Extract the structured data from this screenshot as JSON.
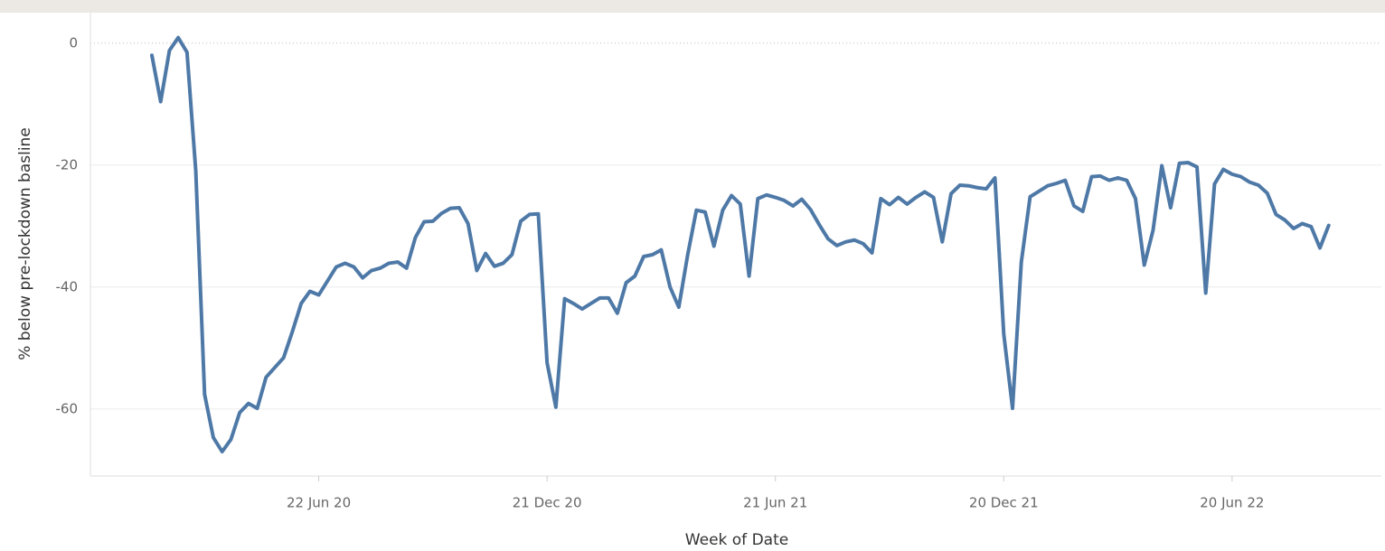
{
  "chart_data": {
    "type": "line",
    "y_label": "% below pre-lockdown basline",
    "x_label": "Week of Date",
    "x": [
      "2020-02-10",
      "2020-02-17",
      "2020-02-24",
      "2020-03-02",
      "2020-03-09",
      "2020-03-16",
      "2020-03-23",
      "2020-03-30",
      "2020-04-06",
      "2020-04-13",
      "2020-04-20",
      "2020-04-27",
      "2020-05-04",
      "2020-05-11",
      "2020-05-18",
      "2020-05-25",
      "2020-06-01",
      "2020-06-08",
      "2020-06-15",
      "2020-06-22",
      "2020-06-29",
      "2020-07-06",
      "2020-07-13",
      "2020-07-20",
      "2020-07-27",
      "2020-08-03",
      "2020-08-10",
      "2020-08-17",
      "2020-08-24",
      "2020-08-31",
      "2020-09-07",
      "2020-09-14",
      "2020-09-21",
      "2020-09-28",
      "2020-10-05",
      "2020-10-12",
      "2020-10-19",
      "2020-10-26",
      "2020-11-02",
      "2020-11-09",
      "2020-11-16",
      "2020-11-23",
      "2020-11-30",
      "2020-12-07",
      "2020-12-14",
      "2020-12-21",
      "2020-12-28",
      "2021-01-04",
      "2021-01-11",
      "2021-01-18",
      "2021-01-25",
      "2021-02-01",
      "2021-02-08",
      "2021-02-15",
      "2021-02-22",
      "2021-03-01",
      "2021-03-08",
      "2021-03-15",
      "2021-03-22",
      "2021-03-29",
      "2021-04-05",
      "2021-04-12",
      "2021-04-19",
      "2021-04-26",
      "2021-05-03",
      "2021-05-10",
      "2021-05-17",
      "2021-05-24",
      "2021-05-31",
      "2021-06-07",
      "2021-06-14",
      "2021-06-21",
      "2021-06-28",
      "2021-07-05",
      "2021-07-12",
      "2021-07-19",
      "2021-07-26",
      "2021-08-02",
      "2021-08-09",
      "2021-08-16",
      "2021-08-23",
      "2021-08-30",
      "2021-09-06",
      "2021-09-13",
      "2021-09-20",
      "2021-09-27",
      "2021-10-04",
      "2021-10-11",
      "2021-10-18",
      "2021-10-25",
      "2021-11-01",
      "2021-11-08",
      "2021-11-15",
      "2021-11-22",
      "2021-11-29",
      "2021-12-06",
      "2021-12-13",
      "2021-12-20",
      "2021-12-27",
      "2022-01-03",
      "2022-01-10",
      "2022-01-17",
      "2022-01-24",
      "2022-01-31",
      "2022-02-07",
      "2022-02-14",
      "2022-02-21",
      "2022-02-28",
      "2022-03-07",
      "2022-03-14",
      "2022-03-21",
      "2022-03-28",
      "2022-04-04",
      "2022-04-11",
      "2022-04-18",
      "2022-04-25",
      "2022-05-02",
      "2022-05-09",
      "2022-05-16",
      "2022-05-23",
      "2022-05-30",
      "2022-06-06",
      "2022-06-13",
      "2022-06-20",
      "2022-06-27",
      "2022-07-04",
      "2022-07-11",
      "2022-07-18",
      "2022-07-25",
      "2022-08-01",
      "2022-08-08",
      "2022-08-15",
      "2022-08-22",
      "2022-08-29",
      "2022-09-05"
    ],
    "series": [
      {
        "name": "% below pre-lockdown basline",
        "color": "#4e79a7",
        "values": [
          -2,
          -9.6,
          -1.2,
          0.9,
          -1.5,
          -21,
          -57.6,
          -64.7,
          -67,
          -65,
          -60.6,
          -59.1,
          -59.9,
          -54.8,
          -53.2,
          -51.6,
          -47.3,
          -42.7,
          -40.7,
          -41.3,
          -39,
          -36.7,
          -36.1,
          -36.7,
          -38.5,
          -37.3,
          -36.9,
          -36.1,
          -35.9,
          -36.9,
          -31.9,
          -29.3,
          -29.2,
          -27.9,
          -27.1,
          -27,
          -29.6,
          -37.3,
          -34.5,
          -36.6,
          -36.1,
          -34.7,
          -29.2,
          -28.1,
          -28,
          -52.4,
          -59.7,
          -41.9,
          -42.7,
          -43.6,
          -42.7,
          -41.8,
          -41.8,
          -44.3,
          -39.3,
          -38.2,
          -35,
          -34.7,
          -33.9,
          -40,
          -43.3,
          -34.8,
          -27.4,
          -27.7,
          -33.3,
          -27.4,
          -25,
          -26.4,
          -38.2,
          -25.5,
          -24.9,
          -25.3,
          -25.8,
          -26.7,
          -25.6,
          -27.3,
          -29.8,
          -32.1,
          -33.2,
          -32.6,
          -32.3,
          -32.9,
          -34.4,
          -25.5,
          -26.5,
          -25.3,
          -26.4,
          -25.3,
          -24.4,
          -25.3,
          -32.6,
          -24.7,
          -23.3,
          -23.4,
          -23.7,
          -23.9,
          -22.1,
          -47.7,
          -59.9,
          -35.9,
          -25.2,
          -24.3,
          -23.4,
          -23,
          -22.5,
          -26.7,
          -27.6,
          -21.9,
          -21.8,
          -22.5,
          -22.1,
          -22.5,
          -25.5,
          -36.4,
          -30.7,
          -20.1,
          -27,
          -19.7,
          -19.6,
          -20.3,
          -41,
          -23.1,
          -20.7,
          -21.5,
          -21.9,
          -22.8,
          -23.3,
          -24.6,
          -28.1,
          -29,
          -30.4,
          -29.6,
          -30.1,
          -33.6,
          -29.9
        ]
      }
    ],
    "xlim": [
      "2019-12-23",
      "2022-10-17"
    ],
    "xticks": [
      {
        "value": "2020-06-22",
        "label": "22 Jun 20"
      },
      {
        "value": "2020-12-21",
        "label": "21 Dec 20"
      },
      {
        "value": "2021-06-21",
        "label": "21 Jun 21"
      },
      {
        "value": "2021-12-20",
        "label": "20 Dec 21"
      },
      {
        "value": "2022-06-20",
        "label": "20 Jun 22"
      }
    ],
    "ylim": [
      -71,
      5
    ],
    "yticks": [
      -60,
      -40,
      -20,
      0
    ],
    "grid": true
  }
}
